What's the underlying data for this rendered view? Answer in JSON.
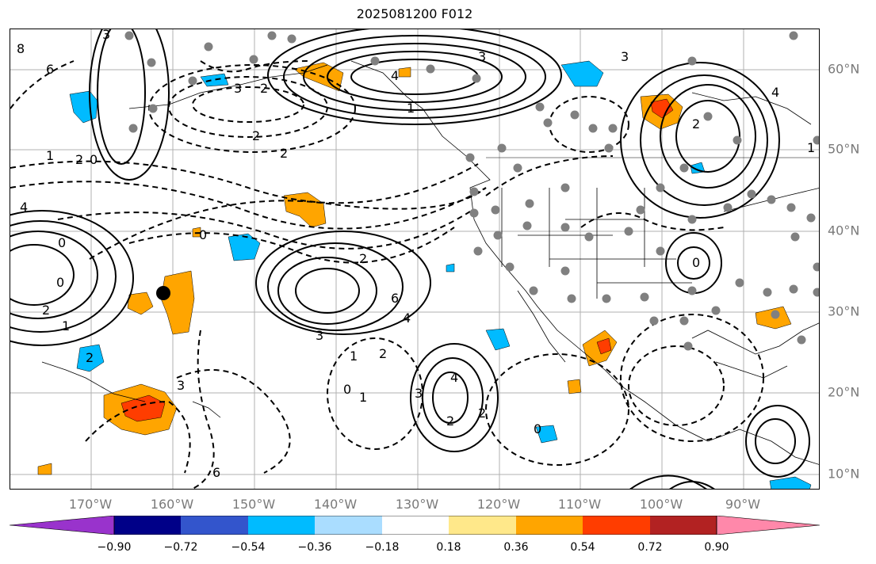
{
  "title": "2025081200 F012",
  "lon_labels": [
    "170°W",
    "160°W",
    "150°W",
    "140°W",
    "130°W",
    "120°W",
    "110°W",
    "100°W",
    "90°W"
  ],
  "lat_labels": [
    "60°N",
    "50°N",
    "40°N",
    "30°N",
    "20°N",
    "10°N"
  ],
  "colorbar": {
    "ticks": [
      "−0.90",
      "−0.72",
      "−0.54",
      "−0.36",
      "−0.18",
      "0.18",
      "0.36",
      "0.54",
      "0.72",
      "0.90"
    ],
    "colors": [
      "#9933cc",
      "#000088",
      "#3355cc",
      "#00bbff",
      "#aaddff",
      "#ffffff",
      "#ffe88a",
      "#ffa500",
      "#ff3d00",
      "#b22222",
      "#ff88aa"
    ]
  },
  "contour_labels": [
    "8",
    "6",
    "3",
    "2",
    "4",
    "1",
    "0",
    "2",
    "2",
    "3",
    "4",
    "3",
    "2",
    "1",
    "3",
    "4",
    "2",
    "1",
    "0",
    "2",
    "6",
    "4",
    "3",
    "2",
    "0",
    "3",
    "4",
    "2",
    "1",
    "2",
    "0",
    "0",
    "2",
    "1",
    "2",
    "0",
    "6",
    "3",
    "1",
    "0"
  ],
  "style": {
    "shade_positive": "#ffa500",
    "shade_strong": "#ff3d00",
    "shade_negative": "#00bbff",
    "obs_marker": "#808080",
    "pin_marker": "#000000",
    "grid": "#b0b0b0"
  }
}
